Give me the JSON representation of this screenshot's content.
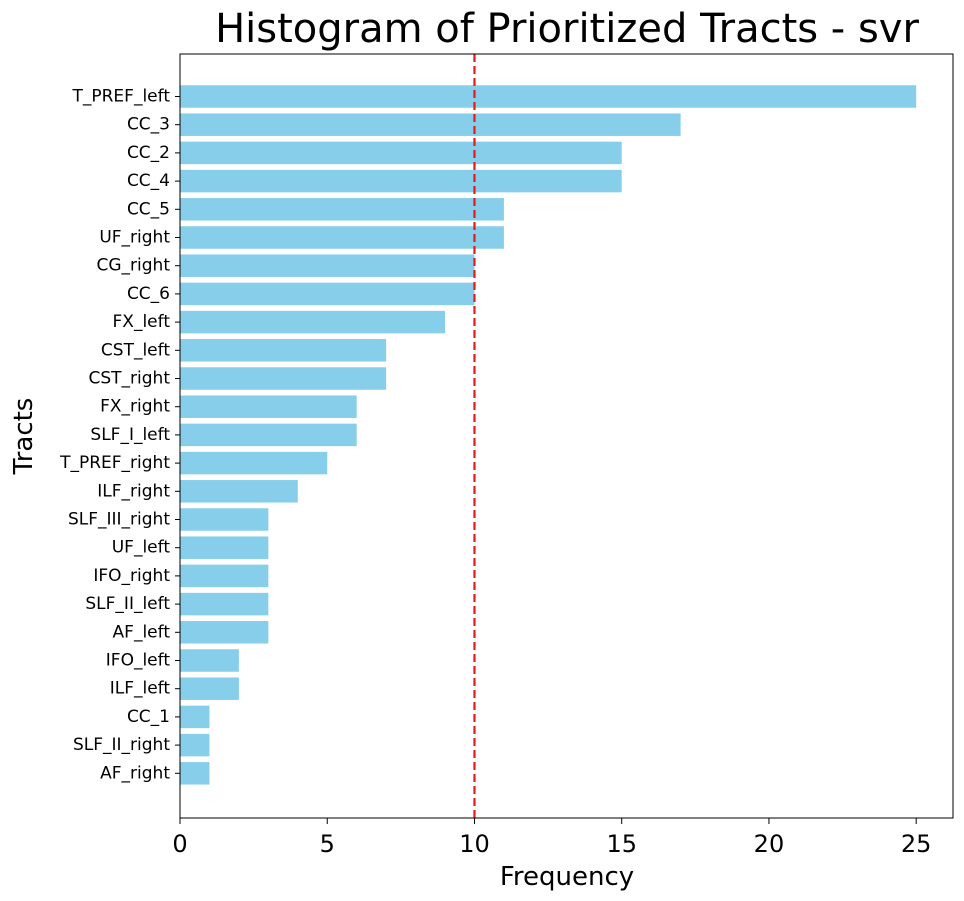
{
  "chart_data": {
    "type": "bar",
    "orientation": "horizontal",
    "title": "Histogram of Prioritized Tracts - svr",
    "xlabel": "Frequency",
    "ylabel": "Tracts",
    "xlim": [
      0,
      26.25
    ],
    "xticks": [
      0,
      5,
      10,
      15,
      20,
      25
    ],
    "xtick_labels": [
      "0",
      "5",
      "10",
      "15",
      "20",
      "25"
    ],
    "categories": [
      "T_PREF_left",
      "CC_3",
      "CC_2",
      "CC_4",
      "CC_5",
      "UF_right",
      "CG_right",
      "CC_6",
      "FX_left",
      "CST_left",
      "CST_right",
      "FX_right",
      "SLF_I_left",
      "T_PREF_right",
      "ILF_right",
      "SLF_III_right",
      "UF_left",
      "IFO_right",
      "SLF_II_left",
      "AF_left",
      "IFO_left",
      "ILF_left",
      "CC_1",
      "SLF_II_right",
      "AF_right"
    ],
    "values": [
      25,
      17,
      15,
      15,
      11,
      11,
      10,
      10,
      9,
      7,
      7,
      6,
      6,
      5,
      4,
      3,
      3,
      3,
      3,
      3,
      2,
      2,
      1,
      1,
      1
    ],
    "reference_line": {
      "x": 10,
      "color": "#e41a1c",
      "style": "dashed"
    },
    "bar_color": "#87ceeb",
    "grid": false,
    "legend": "none"
  }
}
